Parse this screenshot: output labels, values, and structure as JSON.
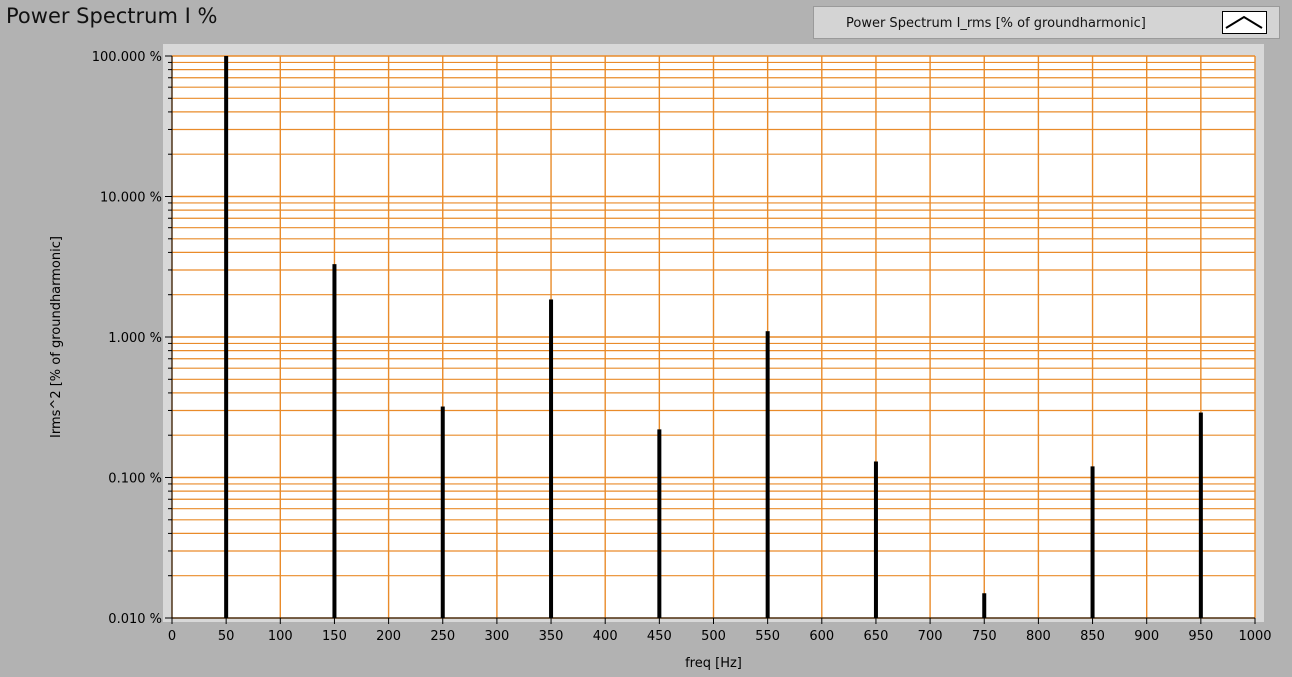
{
  "window": {
    "title": "Power Spectrum I %"
  },
  "legend": {
    "label": "Power Spectrum I_rms [% of groundharmonic]"
  },
  "colors": {
    "background": "#b2b2b2",
    "plot_bg": "#ffffff",
    "grid": "#e98b2a",
    "series": "#000000"
  },
  "chart_data": {
    "type": "bar",
    "title": "Power Spectrum I %",
    "xlabel": "freq [Hz]",
    "ylabel": "Irms^2 [% of groundharmonic]",
    "y_scale": "log",
    "xlim": [
      0,
      1000
    ],
    "ylim": [
      0.01,
      100
    ],
    "x_ticks": [
      0,
      50,
      100,
      150,
      200,
      250,
      300,
      350,
      400,
      450,
      500,
      550,
      600,
      650,
      700,
      750,
      800,
      850,
      900,
      950,
      1000
    ],
    "y_ticks": [
      0.01,
      0.1,
      1,
      10,
      100
    ],
    "y_tick_labels": [
      "0.010 %",
      "0.100 %",
      "1.000 %",
      "10.000 %",
      "100.000 %"
    ],
    "grid": true,
    "legend_position": "top-right",
    "series": [
      {
        "name": "Power Spectrum I_rms [% of groundharmonic]",
        "x": [
          50,
          150,
          250,
          350,
          450,
          550,
          650,
          750,
          850,
          950
        ],
        "values": [
          100,
          3.3,
          0.32,
          1.85,
          0.22,
          1.1,
          0.13,
          0.015,
          0.12,
          0.29
        ]
      }
    ]
  }
}
